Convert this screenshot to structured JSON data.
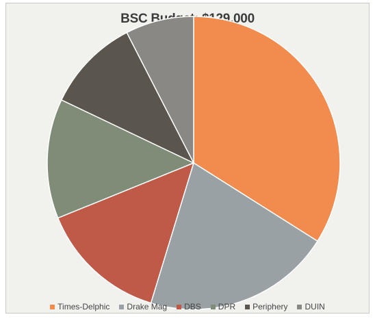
{
  "chart_data": {
    "type": "pie",
    "title": "BSC Budget: $129,000",
    "categories": [
      "Times-Delphic",
      "Drake Mag",
      "DBS",
      "DPR",
      "Periphery",
      "DUIN"
    ],
    "values": [
      36,
      22,
      15,
      14,
      11,
      8
    ],
    "colors": [
      "#f28c4e",
      "#9aa1a5",
      "#bf5a48",
      "#7f8d78",
      "#5a554d",
      "#8a8884"
    ],
    "legend_position": "bottom",
    "start_angle_deg": 0,
    "direction": "clockwise"
  }
}
